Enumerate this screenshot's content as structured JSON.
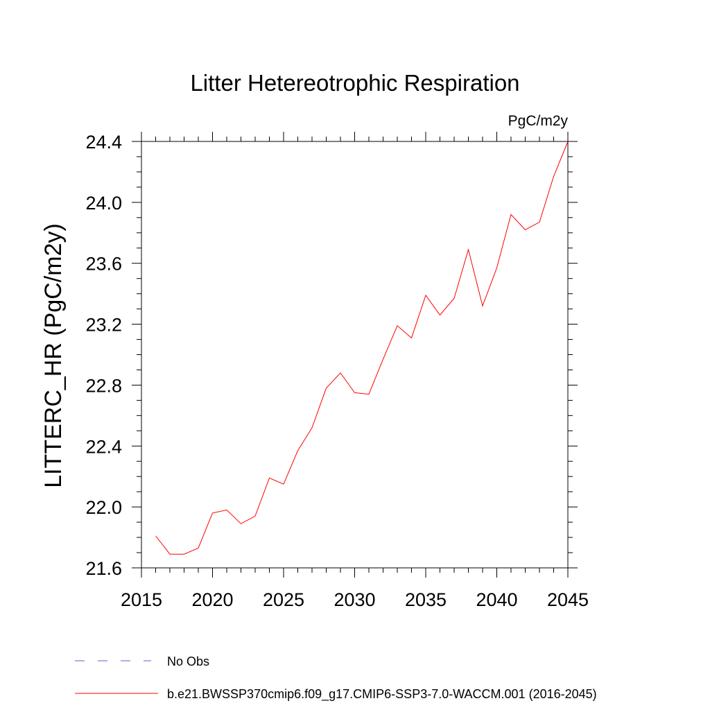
{
  "chart_data": {
    "type": "line",
    "title": "Litter Hetereotrophic Respiration",
    "units": "PgC/m2y",
    "xlabel": "",
    "ylabel": "LITTERC_HR  (PgC/m2y)",
    "xlim": [
      2015,
      2045
    ],
    "ylim": [
      21.6,
      24.4
    ],
    "x_ticks": [
      2015,
      2020,
      2025,
      2030,
      2035,
      2040,
      2045
    ],
    "x_tick_labels": [
      "2015",
      "2020",
      "2025",
      "2030",
      "2035",
      "2040",
      "2045"
    ],
    "y_ticks": [
      21.6,
      22.0,
      22.4,
      22.8,
      23.2,
      23.6,
      24.0,
      24.4
    ],
    "y_tick_labels": [
      "21.6",
      "22.0",
      "22.4",
      "22.8",
      "23.2",
      "23.6",
      "24.0",
      "24.4"
    ],
    "grid": false,
    "legend_position": "bottom",
    "legend": [
      {
        "label": "No Obs",
        "color": "#6a5acd",
        "style": "dashed"
      },
      {
        "label": "b.e21.BWSSP370cmip6.f09_g17.CMIP6-SSP3-7.0-WACCM.001 (2016-2045)",
        "color": "#ff0000",
        "style": "solid"
      }
    ],
    "series": [
      {
        "name": "b.e21.BWSSP370cmip6.f09_g17.CMIP6-SSP3-7.0-WACCM.001 (2016-2045)",
        "color": "#ff0000",
        "x": [
          2016,
          2017,
          2018,
          2019,
          2020,
          2021,
          2022,
          2023,
          2024,
          2025,
          2026,
          2027,
          2028,
          2029,
          2030,
          2031,
          2032,
          2033,
          2034,
          2035,
          2036,
          2037,
          2038,
          2039,
          2040,
          2041,
          2042,
          2043,
          2044,
          2045
        ],
        "values": [
          21.81,
          21.69,
          21.69,
          21.73,
          21.96,
          21.98,
          21.89,
          21.94,
          22.19,
          22.15,
          22.37,
          22.52,
          22.78,
          22.88,
          22.75,
          22.74,
          22.97,
          23.19,
          23.11,
          23.39,
          23.26,
          23.37,
          23.69,
          23.32,
          23.57,
          23.92,
          23.82,
          23.87,
          24.17,
          24.4
        ]
      }
    ]
  }
}
